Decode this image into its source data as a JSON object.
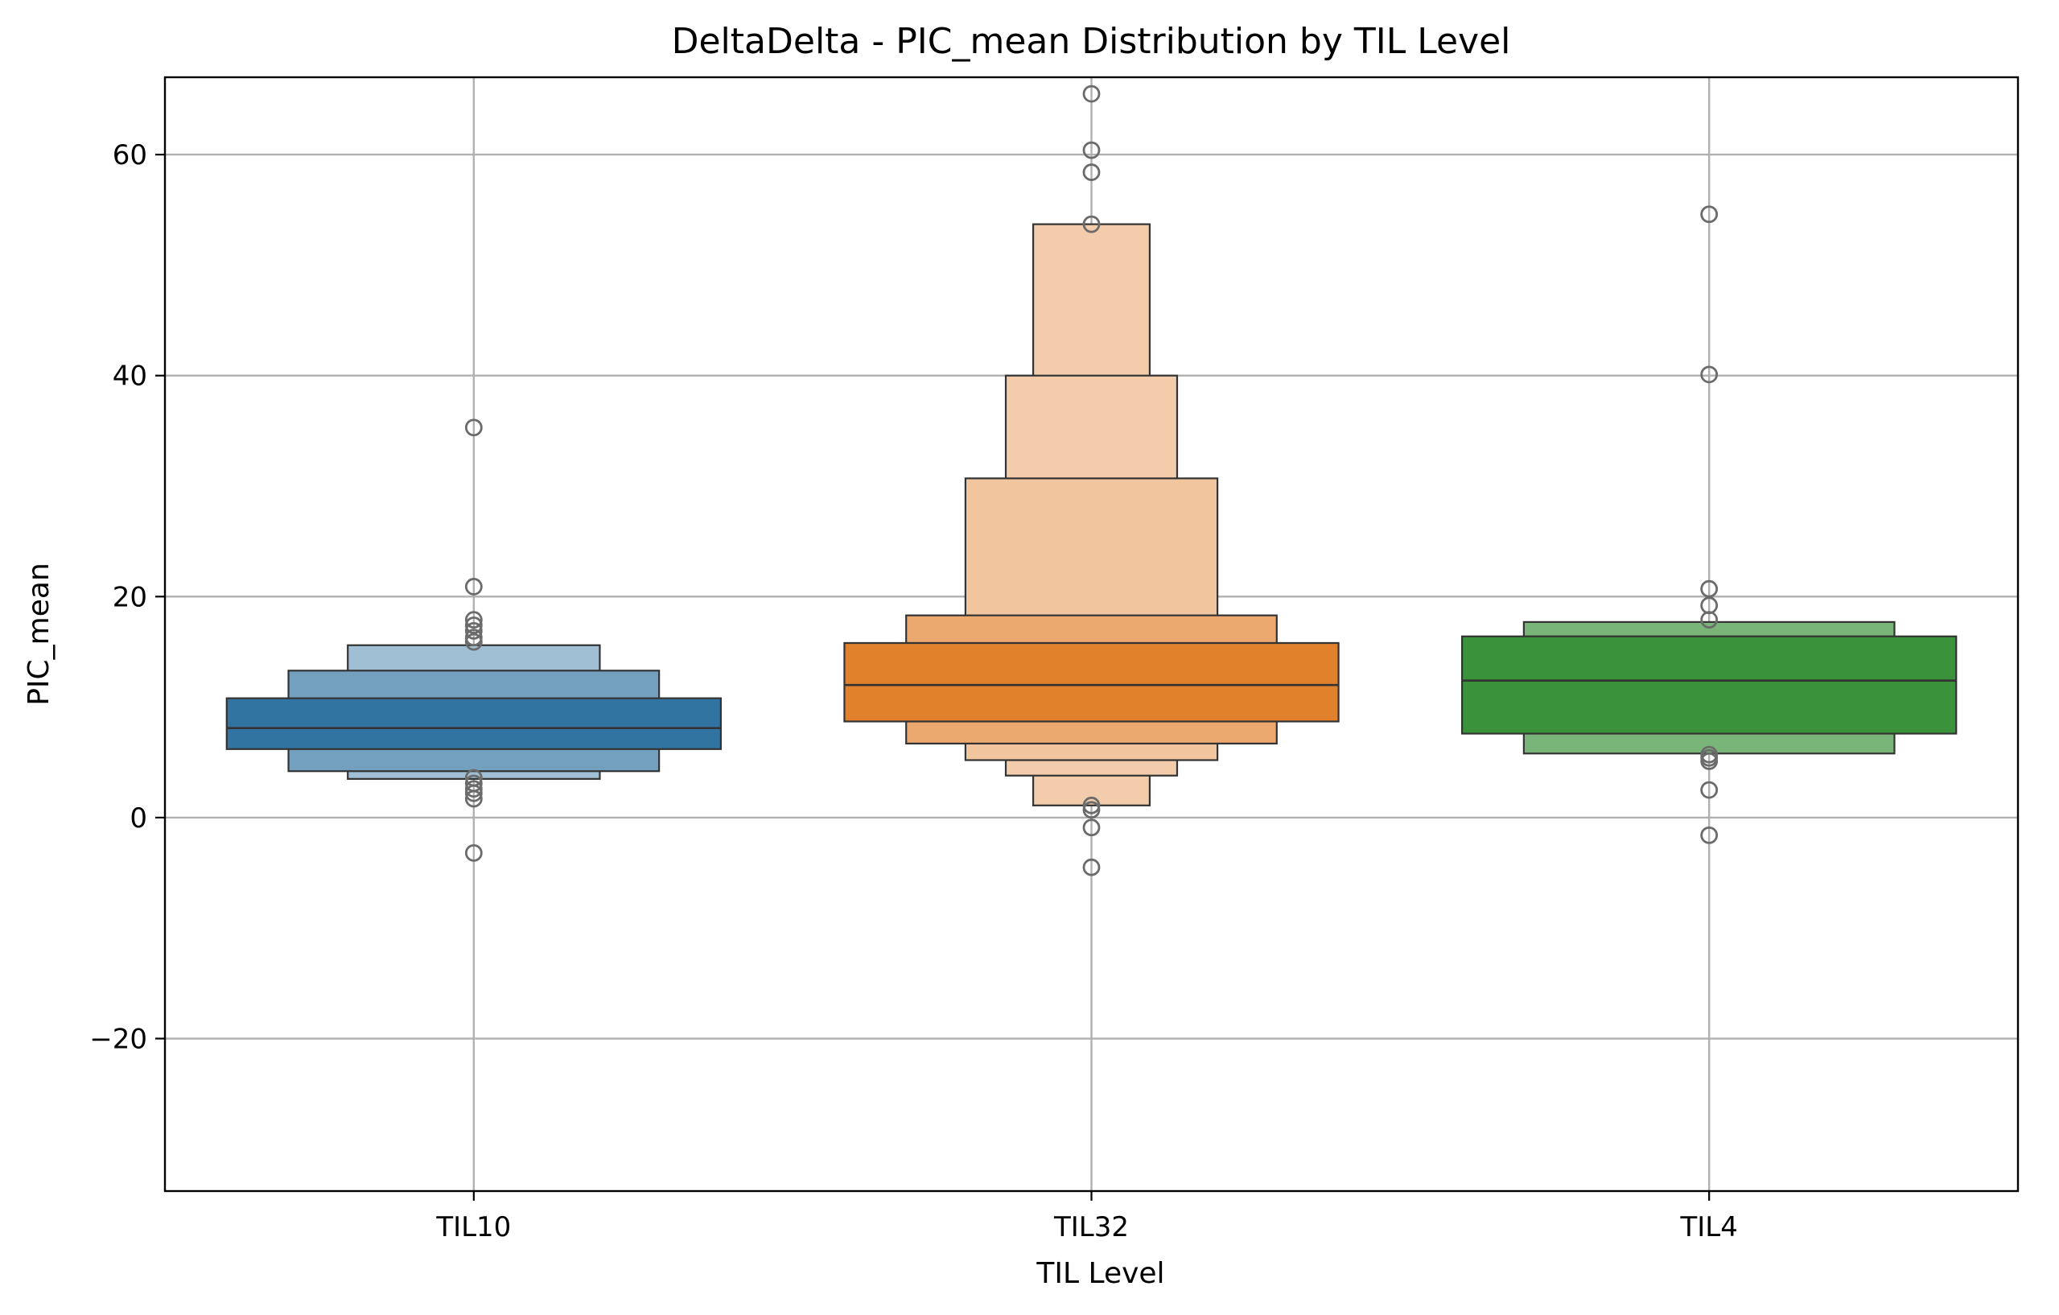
{
  "chart_data": {
    "type": "boxen",
    "title": "DeltaDelta - PIC_mean Distribution by TIL Level",
    "xlabel": "TIL Level",
    "ylabel": "PIC_mean",
    "ylim": [
      -33.8,
      67.0
    ],
    "yticks": [
      -20,
      0,
      20,
      40,
      60
    ],
    "ytick_labels": [
      "−20",
      "0",
      "20",
      "40",
      "60"
    ],
    "grid": true,
    "categories": [
      "TIL10",
      "TIL32",
      "TIL4"
    ],
    "colors": [
      "#3274a1",
      "#e1812c",
      "#3a923a"
    ],
    "series": [
      {
        "category": "TIL10",
        "median": 8.1,
        "levels": [
          {
            "low": 6.2,
            "high": 10.8
          },
          {
            "low": 4.2,
            "high": 13.3
          },
          {
            "low": 3.5,
            "high": 15.6
          }
        ],
        "outliers": [
          35.3,
          20.9,
          17.9,
          17.4,
          16.9,
          16.3,
          15.9,
          3.6,
          3.1,
          2.6,
          2.2,
          1.7,
          -3.2
        ]
      },
      {
        "category": "TIL32",
        "median": 12.0,
        "levels": [
          {
            "low": 8.7,
            "high": 15.8
          },
          {
            "low": 6.7,
            "high": 18.3
          },
          {
            "low": 5.2,
            "high": 30.7
          },
          {
            "low": 3.8,
            "high": 40.0
          },
          {
            "low": 1.1,
            "high": 53.7
          }
        ],
        "outliers": [
          65.5,
          60.4,
          58.4,
          53.7,
          1.1,
          0.7,
          -0.9,
          -4.5
        ]
      },
      {
        "category": "TIL4",
        "median": 12.4,
        "levels": [
          {
            "low": 7.6,
            "high": 16.4
          },
          {
            "low": 5.8,
            "high": 17.7
          }
        ],
        "outliers": [
          54.6,
          40.1,
          20.7,
          19.2,
          17.9,
          5.7,
          5.4,
          5.1,
          2.5,
          -1.6
        ]
      }
    ]
  }
}
